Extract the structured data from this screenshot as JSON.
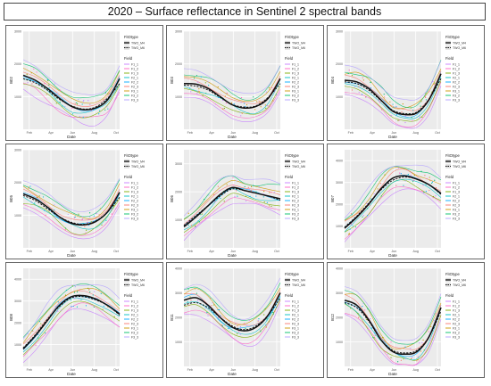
{
  "title": "2020 – Surface reflectance in Sentinel 2 spectral bands",
  "shared": {
    "xlabel": "Date",
    "x_ticks": [
      "Feb",
      "Apr",
      "Jun",
      "Aug",
      "Oct"
    ],
    "legend_fit_title": "FitOtype",
    "legend_fit_items": [
      "TWO_M4",
      "TWO_M6"
    ],
    "legend_field_title": "Field",
    "legend_field_items": [
      "F1_1",
      "F1_2",
      "F1_3",
      "F2_1",
      "F2_2",
      "F2_3",
      "F3_1",
      "F3_2",
      "F3_3"
    ],
    "colors": {
      "panel_bg": "#ebebeb",
      "fit_main": "#111111",
      "fields": [
        "#c77cff",
        "#ff61c3",
        "#7cae00",
        "#00bfc4",
        "#00a9ff",
        "#f8766d",
        "#cd9600",
        "#00be67",
        "#b2a1ff"
      ]
    }
  },
  "chart_data": [
    {
      "type": "line",
      "ylabel": "B02",
      "ylim": [
        0,
        3000
      ],
      "y_ticks": [
        "1000",
        "2000",
        "3000"
      ],
      "x": [
        0,
        1,
        2,
        3,
        4,
        5,
        6,
        7,
        8
      ],
      "series": [
        {
          "name": "TWO_M4",
          "values": [
            1650,
            1500,
            1250,
            950,
            700,
            600,
            650,
            900,
            1550
          ]
        },
        {
          "name": "TWO_M6",
          "values": [
            1550,
            1420,
            1200,
            920,
            720,
            620,
            680,
            950,
            1400
          ]
        }
      ]
    },
    {
      "type": "line",
      "ylabel": "B03",
      "ylim": [
        0,
        3000
      ],
      "y_ticks": [
        "1000",
        "2000",
        "3000"
      ],
      "x": [
        0,
        1,
        2,
        3,
        4,
        5,
        6,
        7,
        8
      ],
      "series": [
        {
          "name": "TWO_M4",
          "values": [
            1400,
            1380,
            1250,
            1000,
            750,
            650,
            700,
            950,
            1550
          ]
        },
        {
          "name": "TWO_M6",
          "values": [
            1350,
            1320,
            1200,
            980,
            760,
            680,
            720,
            980,
            1400
          ]
        }
      ]
    },
    {
      "type": "line",
      "ylabel": "B04",
      "ylim": [
        0,
        3000
      ],
      "y_ticks": [
        "1000",
        "2000",
        "3000"
      ],
      "x": [
        0,
        1,
        2,
        3,
        4,
        5,
        6,
        7,
        8
      ],
      "series": [
        {
          "name": "TWO_M4",
          "values": [
            1500,
            1450,
            1250,
            900,
            550,
            450,
            500,
            900,
            1700
          ]
        },
        {
          "name": "TWO_M6",
          "values": [
            1450,
            1400,
            1200,
            880,
            580,
            480,
            530,
            920,
            1550
          ]
        }
      ]
    },
    {
      "type": "line",
      "ylabel": "B05",
      "ylim": [
        0,
        3000
      ],
      "y_ticks": [
        "1000",
        "2000",
        "3000"
      ],
      "x": [
        0,
        1,
        2,
        3,
        4,
        5,
        6,
        7,
        8
      ],
      "series": [
        {
          "name": "TWO_M4",
          "values": [
            1650,
            1500,
            1250,
            950,
            750,
            700,
            800,
            1100,
            1700
          ]
        },
        {
          "name": "TWO_M6",
          "values": [
            1600,
            1450,
            1200,
            950,
            780,
            720,
            820,
            1100,
            1550
          ]
        }
      ]
    },
    {
      "type": "line",
      "ylabel": "B06",
      "ylim": [
        0,
        3500
      ],
      "y_ticks": [
        "1000",
        "2000",
        "3000"
      ],
      "x": [
        0,
        1,
        2,
        3,
        4,
        5,
        6,
        7,
        8
      ],
      "series": [
        {
          "name": "TWO_M4",
          "values": [
            750,
            1100,
            1500,
            1900,
            2150,
            2050,
            1950,
            1850,
            1750
          ]
        },
        {
          "name": "TWO_M6",
          "values": [
            800,
            1150,
            1500,
            1850,
            2100,
            2050,
            1950,
            1850,
            1700
          ]
        }
      ]
    },
    {
      "type": "line",
      "ylabel": "B07",
      "ylim": [
        0,
        4500
      ],
      "y_ticks": [
        "1000",
        "2000",
        "3000",
        "4000"
      ],
      "x": [
        0,
        1,
        2,
        3,
        4,
        5,
        6,
        7,
        8
      ],
      "series": [
        {
          "name": "TWO_M4",
          "values": [
            900,
            1400,
            2000,
            2700,
            3200,
            3300,
            3150,
            2900,
            2500
          ]
        },
        {
          "name": "TWO_M6",
          "values": [
            950,
            1450,
            2050,
            2650,
            3100,
            3250,
            3150,
            2900,
            2450
          ]
        }
      ]
    },
    {
      "type": "line",
      "ylabel": "B08",
      "ylim": [
        0,
        4500
      ],
      "y_ticks": [
        "1000",
        "2000",
        "3000",
        "4000"
      ],
      "x": [
        0,
        1,
        2,
        3,
        4,
        5,
        6,
        7,
        8
      ],
      "series": [
        {
          "name": "TWO_M4",
          "values": [
            800,
            1400,
            2100,
            2800,
            3200,
            3250,
            3100,
            2800,
            2400
          ]
        },
        {
          "name": "TWO_M6",
          "values": [
            850,
            1450,
            2150,
            2750,
            3150,
            3200,
            3050,
            2800,
            2350
          ]
        }
      ]
    },
    {
      "type": "line",
      "ylabel": "B11",
      "ylim": [
        0,
        4000
      ],
      "y_ticks": [
        "1000",
        "2000",
        "3000",
        "4000"
      ],
      "x": [
        0,
        1,
        2,
        3,
        4,
        5,
        6,
        7,
        8
      ],
      "series": [
        {
          "name": "TWO_M4",
          "values": [
            2700,
            2800,
            2500,
            2000,
            1600,
            1450,
            1600,
            2100,
            3000
          ]
        },
        {
          "name": "TWO_M6",
          "values": [
            2500,
            2600,
            2400,
            2000,
            1650,
            1500,
            1650,
            2100,
            2800
          ]
        }
      ]
    },
    {
      "type": "line",
      "ylabel": "B12",
      "ylim": [
        0,
        4000
      ],
      "y_ticks": [
        "1000",
        "2000",
        "3000",
        "4000"
      ],
      "x": [
        0,
        1,
        2,
        3,
        4,
        5,
        6,
        7,
        8
      ],
      "series": [
        {
          "name": "TWO_M4",
          "values": [
            2700,
            2500,
            1900,
            1100,
            600,
            500,
            600,
            1200,
            2400
          ]
        },
        {
          "name": "TWO_M6",
          "values": [
            2600,
            2400,
            1850,
            1100,
            650,
            550,
            650,
            1200,
            2250
          ]
        }
      ]
    }
  ]
}
